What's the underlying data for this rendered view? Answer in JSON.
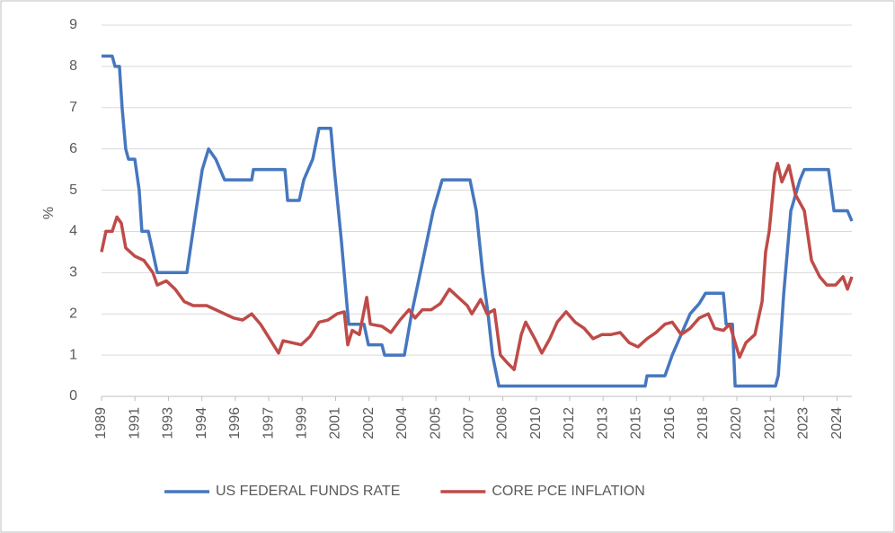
{
  "chart_data": {
    "type": "line",
    "ylabel": "%",
    "xlim": [
      1989,
      2024.68
    ],
    "ylim": [
      0,
      9
    ],
    "yticks": [
      0,
      1,
      2,
      3,
      4,
      5,
      6,
      7,
      8,
      9
    ],
    "xticks": [
      {
        "value": 1989.0,
        "label": "1989"
      },
      {
        "value": 1990.59,
        "label": "1991"
      },
      {
        "value": 1992.18,
        "label": "1993"
      },
      {
        "value": 1993.77,
        "label": "1994"
      },
      {
        "value": 1995.36,
        "label": "1996"
      },
      {
        "value": 1996.95,
        "label": "1997"
      },
      {
        "value": 1998.54,
        "label": "1999"
      },
      {
        "value": 2000.13,
        "label": "2001"
      },
      {
        "value": 2001.72,
        "label": "2002"
      },
      {
        "value": 2003.31,
        "label": "2004"
      },
      {
        "value": 2004.9,
        "label": "2005"
      },
      {
        "value": 2006.49,
        "label": "2007"
      },
      {
        "value": 2008.08,
        "label": "2008"
      },
      {
        "value": 2009.67,
        "label": "2010"
      },
      {
        "value": 2011.26,
        "label": "2012"
      },
      {
        "value": 2012.85,
        "label": "2013"
      },
      {
        "value": 2014.44,
        "label": "2015"
      },
      {
        "value": 2016.03,
        "label": "2016"
      },
      {
        "value": 2017.62,
        "label": "2018"
      },
      {
        "value": 2019.21,
        "label": "2020"
      },
      {
        "value": 2020.8,
        "label": "2021"
      },
      {
        "value": 2022.39,
        "label": "2023"
      },
      {
        "value": 2023.98,
        "label": "2024"
      }
    ],
    "grid": true,
    "legend": "bottom",
    "series": [
      {
        "name": "US FEDERAL FUNDS RATE",
        "color": "#4677bf",
        "x": [
          1989.0,
          1989.51,
          1989.64,
          1989.85,
          1989.98,
          1990.15,
          1990.28,
          1990.58,
          1990.79,
          1990.92,
          1991.22,
          1991.44,
          1991.65,
          1993.06,
          1993.49,
          1993.79,
          1994.09,
          1994.43,
          1994.85,
          1996.14,
          1996.22,
          1997.72,
          1997.85,
          1998.4,
          1998.62,
          1999.04,
          1999.34,
          1999.9,
          2000.07,
          2000.41,
          2000.75,
          2001.48,
          2001.69,
          2002.33,
          2002.46,
          2003.4,
          2003.74,
          2004.26,
          2004.77,
          2005.2,
          2006.52,
          2006.82,
          2007.12,
          2007.38,
          2007.59,
          2007.89,
          2014.85,
          2014.94,
          2015.79,
          2016.14,
          2016.56,
          2016.99,
          2017.42,
          2017.72,
          2018.57,
          2018.7,
          2019.0,
          2019.13,
          2021.05,
          2021.18,
          2021.44,
          2021.78,
          2022.21,
          2022.42,
          2023.57,
          2023.83,
          2024.47,
          2024.68
        ],
        "values": [
          8.25,
          8.25,
          8.0,
          8.0,
          7.0,
          6.0,
          5.75,
          5.75,
          5.0,
          4.0,
          4.0,
          3.5,
          3.0,
          3.0,
          4.5,
          5.5,
          6.0,
          5.75,
          5.25,
          5.25,
          5.5,
          5.5,
          4.75,
          4.75,
          5.25,
          5.75,
          6.5,
          6.5,
          5.5,
          3.75,
          1.75,
          1.75,
          1.25,
          1.25,
          1.0,
          1.0,
          2.0,
          3.25,
          4.5,
          5.25,
          5.25,
          4.5,
          3.0,
          2.0,
          1.0,
          0.25,
          0.25,
          0.5,
          0.5,
          1.0,
          1.5,
          2.0,
          2.25,
          2.5,
          2.5,
          1.75,
          1.75,
          0.25,
          0.25,
          0.5,
          2.5,
          4.5,
          5.25,
          5.5,
          5.5,
          4.5,
          4.5,
          4.25
        ]
      },
      {
        "name": "CORE PCE INFLATION",
        "color": "#be4b48",
        "x": [
          1989.0,
          1989.21,
          1989.51,
          1989.73,
          1989.94,
          1990.15,
          1990.58,
          1991.01,
          1991.44,
          1991.65,
          1992.08,
          1992.5,
          1992.93,
          1993.36,
          1994.0,
          1994.43,
          1994.85,
          1995.28,
          1995.71,
          1996.14,
          1996.56,
          1996.99,
          1997.42,
          1997.63,
          1998.06,
          1998.49,
          1998.91,
          1999.34,
          1999.77,
          2000.2,
          2000.54,
          2000.71,
          2000.92,
          2001.26,
          2001.61,
          2001.78,
          2002.33,
          2002.76,
          2003.19,
          2003.62,
          2003.91,
          2004.26,
          2004.68,
          2005.11,
          2005.54,
          2005.97,
          2006.39,
          2006.61,
          2007.03,
          2007.33,
          2007.68,
          2007.97,
          2008.32,
          2008.62,
          2008.96,
          2009.17,
          2009.6,
          2009.94,
          2010.32,
          2010.67,
          2011.09,
          2011.52,
          2011.95,
          2012.38,
          2012.8,
          2013.23,
          2013.66,
          2014.09,
          2014.51,
          2014.94,
          2015.37,
          2015.79,
          2016.14,
          2016.56,
          2016.99,
          2017.42,
          2017.85,
          2018.15,
          2018.57,
          2018.87,
          2019.13,
          2019.34,
          2019.64,
          2020.07,
          2020.41,
          2020.58,
          2020.75,
          2021.01,
          2021.14,
          2021.35,
          2021.69,
          2021.99,
          2022.42,
          2022.76,
          2023.15,
          2023.49,
          2023.91,
          2024.26,
          2024.47,
          2024.68
        ],
        "values": [
          3.5,
          4.0,
          4.0,
          4.35,
          4.2,
          3.6,
          3.4,
          3.3,
          3.0,
          2.7,
          2.8,
          2.6,
          2.3,
          2.2,
          2.2,
          2.1,
          2.0,
          1.9,
          1.85,
          2.0,
          1.75,
          1.4,
          1.05,
          1.35,
          1.3,
          1.25,
          1.45,
          1.8,
          1.85,
          2.0,
          2.05,
          1.25,
          1.6,
          1.5,
          2.4,
          1.75,
          1.7,
          1.55,
          1.85,
          2.1,
          1.9,
          2.1,
          2.1,
          2.25,
          2.6,
          2.4,
          2.2,
          2.0,
          2.35,
          2.0,
          2.1,
          1.0,
          0.8,
          0.65,
          1.5,
          1.8,
          1.4,
          1.05,
          1.4,
          1.8,
          2.05,
          1.8,
          1.65,
          1.4,
          1.5,
          1.5,
          1.55,
          1.3,
          1.2,
          1.4,
          1.55,
          1.75,
          1.8,
          1.5,
          1.65,
          1.9,
          2.0,
          1.65,
          1.6,
          1.75,
          1.3,
          0.95,
          1.3,
          1.5,
          2.3,
          3.5,
          4.0,
          5.4,
          5.65,
          5.2,
          5.6,
          4.9,
          4.5,
          3.3,
          2.9,
          2.7,
          2.7,
          2.9,
          2.6,
          2.9
        ]
      }
    ]
  }
}
